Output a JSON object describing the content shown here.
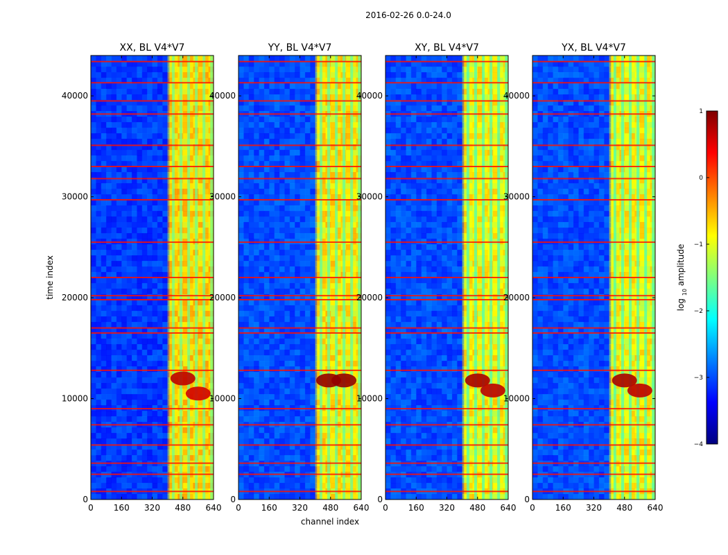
{
  "figure": {
    "suptitle": "2016-02-26 0.0-24.0",
    "xlabel": "channel index",
    "ylabel": "time index"
  },
  "colorbar": {
    "label": "log",
    "label_sub": "10",
    "label_suffix": " amplitude",
    "range": [
      -4,
      1
    ],
    "ticks": [
      -4,
      -3,
      -2,
      -1,
      0,
      1
    ],
    "tick_labels": [
      "−4",
      "−3",
      "−2",
      "−1",
      "0",
      "1"
    ],
    "cmap": "jet",
    "colors": [
      "#00007f",
      "#0000ff",
      "#007fff",
      "#00ffff",
      "#7fff7f",
      "#ffff00",
      "#ff7f00",
      "#ff0000",
      "#7f0000"
    ]
  },
  "chart_data": [
    {
      "type": "heatmap",
      "title": "XX, BL V4*V7",
      "xlim": [
        0,
        640
      ],
      "ylim": [
        0,
        44000
      ],
      "xticks": [
        0,
        160,
        320,
        480,
        640
      ],
      "yticks": [
        0,
        10000,
        20000,
        30000,
        40000
      ],
      "bands": [
        {
          "ch_from": 0,
          "ch_to": 410,
          "level": -3.1
        },
        {
          "ch_from": 410,
          "ch_to": 640,
          "level": -0.7
        }
      ],
      "flagged_rows": [
        800,
        2500,
        3600,
        5400,
        7400,
        9000,
        12800,
        16500,
        17000,
        19800,
        20200,
        22000,
        25500,
        29700,
        31800,
        33000,
        35100,
        38200,
        39500,
        41300,
        43400
      ],
      "hot_spots": [
        {
          "ch": 480,
          "t": 12000,
          "level": 0.7
        },
        {
          "ch": 560,
          "t": 10500,
          "level": 0.6
        }
      ]
    },
    {
      "type": "heatmap",
      "title": "YY, BL V4*V7",
      "xlim": [
        0,
        640
      ],
      "ylim": [
        0,
        44000
      ],
      "xticks": [
        0,
        160,
        320,
        480,
        640
      ],
      "yticks": [
        0,
        10000,
        20000,
        30000,
        40000
      ],
      "bands": [
        {
          "ch_from": 0,
          "ch_to": 410,
          "level": -3.0
        },
        {
          "ch_from": 410,
          "ch_to": 640,
          "level": -0.8
        }
      ],
      "flagged_rows": [
        800,
        2500,
        3600,
        5400,
        7400,
        9000,
        12800,
        16500,
        17000,
        19800,
        20200,
        22000,
        25500,
        29700,
        31800,
        33000,
        35100,
        38200,
        39500,
        41300,
        43400
      ],
      "hot_spots": [
        {
          "ch": 470,
          "t": 11800,
          "level": 0.9
        },
        {
          "ch": 550,
          "t": 11800,
          "level": 0.9
        }
      ]
    },
    {
      "type": "heatmap",
      "title": "XY, BL V4*V7",
      "xlim": [
        0,
        640
      ],
      "ylim": [
        0,
        44000
      ],
      "xticks": [
        0,
        160,
        320,
        480,
        640
      ],
      "yticks": [
        0,
        10000,
        20000,
        30000,
        40000
      ],
      "bands": [
        {
          "ch_from": 0,
          "ch_to": 410,
          "level": -3.0
        },
        {
          "ch_from": 410,
          "ch_to": 640,
          "level": -0.9
        }
      ],
      "flagged_rows": [
        800,
        2500,
        3600,
        5400,
        7400,
        9000,
        12800,
        16500,
        17000,
        19800,
        20200,
        22000,
        25500,
        29700,
        31800,
        33000,
        35100,
        38200,
        39500,
        41300,
        43400
      ],
      "hot_spots": [
        {
          "ch": 480,
          "t": 11800,
          "level": 0.8
        },
        {
          "ch": 560,
          "t": 10800,
          "level": 0.7
        }
      ]
    },
    {
      "type": "heatmap",
      "title": "YX, BL V4*V7",
      "xlim": [
        0,
        640
      ],
      "ylim": [
        0,
        44000
      ],
      "xticks": [
        0,
        160,
        320,
        480,
        640
      ],
      "yticks": [
        0,
        10000,
        20000,
        30000,
        40000
      ],
      "bands": [
        {
          "ch_from": 0,
          "ch_to": 410,
          "level": -3.0
        },
        {
          "ch_from": 410,
          "ch_to": 640,
          "level": -0.9
        }
      ],
      "flagged_rows": [
        800,
        2500,
        3600,
        5400,
        7400,
        9000,
        12800,
        16500,
        17000,
        19800,
        20200,
        22000,
        25500,
        29700,
        31800,
        33000,
        35100,
        38200,
        39500,
        41300,
        43400
      ],
      "hot_spots": [
        {
          "ch": 480,
          "t": 11800,
          "level": 0.8
        },
        {
          "ch": 560,
          "t": 10800,
          "level": 0.7
        }
      ]
    }
  ]
}
